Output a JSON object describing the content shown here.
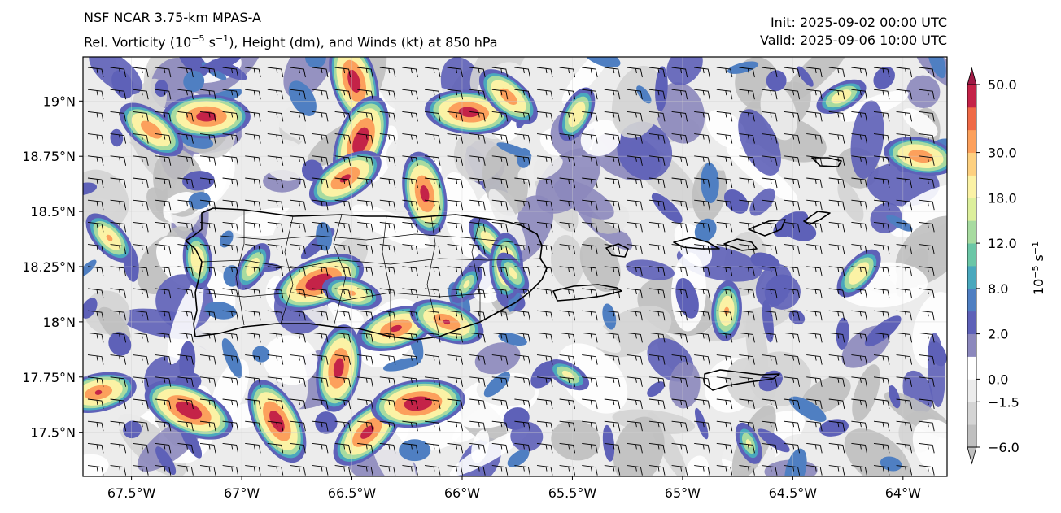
{
  "title": {
    "model": "NSF NCAR 3.75-km MPAS-A",
    "field_prefix": "Rel. Vorticity (10",
    "field_exp": "−5",
    "field_mid": " s",
    "field_exp2": "−1",
    "field_suffix": "), Height (dm), and Winds (kt) at 850 hPa",
    "init": "Init: 2025-09-02 00:00 UTC",
    "valid": "Valid: 2025-09-06 10:00 UTC"
  },
  "map": {
    "lon_range": [
      -67.72,
      -63.8
    ],
    "lat_range": [
      17.3,
      19.2
    ],
    "lon_ticks": [
      {
        "value": -67.5,
        "label": "67.5°W"
      },
      {
        "value": -67.0,
        "label": "67°W"
      },
      {
        "value": -66.5,
        "label": "66.5°W"
      },
      {
        "value": -66.0,
        "label": "66°W"
      },
      {
        "value": -65.5,
        "label": "65.5°W"
      },
      {
        "value": -65.0,
        "label": "65°W"
      },
      {
        "value": -64.5,
        "label": "64.5°W"
      },
      {
        "value": -64.0,
        "label": "64°W"
      }
    ],
    "lat_ticks": [
      {
        "value": 19.0,
        "label": "19°N"
      },
      {
        "value": 18.75,
        "label": "18.75°N"
      },
      {
        "value": 18.5,
        "label": "18.5°N"
      },
      {
        "value": 18.25,
        "label": "18.25°N"
      },
      {
        "value": 18.0,
        "label": "18°N"
      },
      {
        "value": 17.75,
        "label": "17.75°N"
      },
      {
        "value": 17.5,
        "label": "17.5°N"
      }
    ],
    "features": [
      {
        "name": "Puerto Rico",
        "type": "island"
      },
      {
        "name": "Vieques",
        "type": "island"
      },
      {
        "name": "Culebra",
        "type": "island"
      },
      {
        "name": "Virgin Islands",
        "type": "island-group"
      },
      {
        "name": "St. Croix",
        "type": "island"
      }
    ]
  },
  "colorbar": {
    "unit_base": "10",
    "unit_exp": "−5",
    "unit_tail": " s",
    "unit_exp2": "−1",
    "levels": [
      -6.0,
      -3.0,
      -1.5,
      0.0,
      1.0,
      2.0,
      4.0,
      8.0,
      10.0,
      12.0,
      15.0,
      18.0,
      24.0,
      30.0,
      36.0,
      42.0,
      50.0
    ],
    "colors": [
      "#bfbfbf",
      "#d4d4d4",
      "#ececec",
      "#ffffff",
      "#8c88bd",
      "#5e61b8",
      "#4f7fc2",
      "#4aa8bd",
      "#6bc6a6",
      "#a7dba0",
      "#dcef9c",
      "#fbf2a5",
      "#fdd080",
      "#fca05c",
      "#ef6a47",
      "#c42348"
    ],
    "tick_labels": [
      {
        "value": 50.0,
        "label": "50.0"
      },
      {
        "value": 30.0,
        "label": "30.0"
      },
      {
        "value": 18.0,
        "label": "18.0"
      },
      {
        "value": 12.0,
        "label": "12.0"
      },
      {
        "value": 8.0,
        "label": "8.0"
      },
      {
        "value": 2.0,
        "label": "2.0"
      },
      {
        "value": 0.0,
        "label": "0.0"
      },
      {
        "value": -1.5,
        "label": "−1.5"
      },
      {
        "value": -6.0,
        "label": "−6.0"
      }
    ]
  },
  "vorticity_maxima": [
    {
      "lon": -67.16,
      "lat": 18.93,
      "value": 50
    },
    {
      "lon": -67.41,
      "lat": 18.87,
      "value": 40
    },
    {
      "lon": -66.49,
      "lat": 19.09,
      "value": 52
    },
    {
      "lon": -66.46,
      "lat": 18.82,
      "value": 55
    },
    {
      "lon": -66.53,
      "lat": 18.65,
      "value": 45
    },
    {
      "lon": -65.97,
      "lat": 18.95,
      "value": 50
    },
    {
      "lon": -65.79,
      "lat": 19.02,
      "value": 38
    },
    {
      "lon": -66.17,
      "lat": 18.58,
      "value": 48
    },
    {
      "lon": -65.48,
      "lat": 18.94,
      "value": 28
    },
    {
      "lon": -64.28,
      "lat": 19.02,
      "value": 25
    },
    {
      "lon": -63.92,
      "lat": 18.75,
      "value": 40
    },
    {
      "lon": -67.6,
      "lat": 18.38,
      "value": 30
    },
    {
      "lon": -67.2,
      "lat": 18.28,
      "value": 28
    },
    {
      "lon": -66.95,
      "lat": 18.25,
      "value": 24
    },
    {
      "lon": -66.65,
      "lat": 18.18,
      "value": 55
    },
    {
      "lon": -66.5,
      "lat": 18.13,
      "value": 30
    },
    {
      "lon": -65.88,
      "lat": 18.37,
      "value": 25
    },
    {
      "lon": -65.8,
      "lat": 18.25,
      "value": 35
    },
    {
      "lon": -65.98,
      "lat": 18.17,
      "value": 18
    },
    {
      "lon": -66.3,
      "lat": 17.97,
      "value": 45
    },
    {
      "lon": -66.07,
      "lat": 18.0,
      "value": 42
    },
    {
      "lon": -65.77,
      "lat": 18.22,
      "value": 20
    },
    {
      "lon": -64.8,
      "lat": 18.05,
      "value": 30
    },
    {
      "lon": -64.2,
      "lat": 18.22,
      "value": 28
    },
    {
      "lon": -67.65,
      "lat": 17.68,
      "value": 42
    },
    {
      "lon": -67.24,
      "lat": 17.6,
      "value": 55
    },
    {
      "lon": -66.84,
      "lat": 17.55,
      "value": 52
    },
    {
      "lon": -66.56,
      "lat": 17.79,
      "value": 50
    },
    {
      "lon": -66.43,
      "lat": 17.5,
      "value": 48
    },
    {
      "lon": -66.2,
      "lat": 17.63,
      "value": 55
    },
    {
      "lon": -65.52,
      "lat": 17.76,
      "value": 20
    },
    {
      "lon": -64.7,
      "lat": 17.45,
      "value": 18
    }
  ],
  "winds": {
    "speed_kt": 15,
    "direction": "easterly"
  }
}
